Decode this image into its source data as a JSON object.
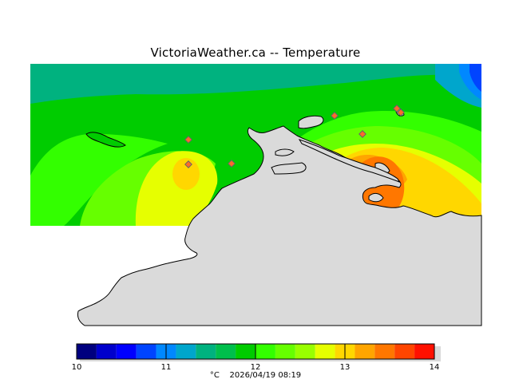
{
  "title": "VictoriaWeather.ca -- Temperature",
  "legend": {
    "colors": [
      "#00007f",
      "#0000cc",
      "#0000ff",
      "#0044ff",
      "#0088ff",
      "#00a6cc",
      "#00b27f",
      "#00bf4c",
      "#00cc00",
      "#33ff00",
      "#66ff00",
      "#99ff00",
      "#e6ff00",
      "#ffd700",
      "#ffa500",
      "#ff7700",
      "#ff4500",
      "#ff1000"
    ],
    "ticks": [
      "10",
      "11",
      "12",
      "13",
      "14"
    ],
    "unit": "°C",
    "timestamp": "2026/04/19 08:19",
    "range": [
      10,
      14
    ]
  },
  "map": {
    "land_color": "#dadada",
    "stations_count_shown": 7
  }
}
